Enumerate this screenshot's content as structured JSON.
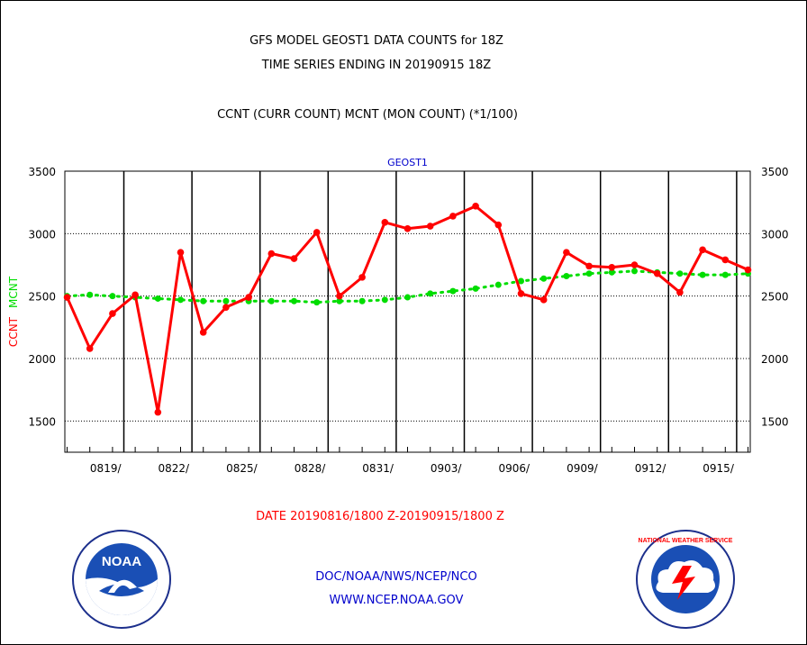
{
  "header": {
    "title_line1": "GFS MODEL GEOST1 DATA COUNTS for 18Z",
    "title_line2": "TIME SERIES ENDING IN 20190915 18Z",
    "subtitle": "CCNT (CURR COUNT) MCNT (MON COUNT) (*1/100)"
  },
  "footer": {
    "date_range": "DATE 20190816/1800 Z-20190915/1800 Z",
    "credit_line1": "DOC/NOAA/NWS/NCEP/NCO",
    "credit_line2": "WWW.NCEP.NOAA.GOV"
  },
  "logos": {
    "left_text": "NOAA",
    "right_text": "NATIONAL WEATHER SERVICE"
  },
  "chart_data": {
    "type": "line",
    "title": "GEOST1",
    "ylabel_ccnt": "CCNT",
    "ylabel_mcnt": "MCNT",
    "ylim": [
      1250,
      3500
    ],
    "yticks": [
      1500,
      2000,
      2500,
      3000,
      3500
    ],
    "xlim": [
      -0.1,
      30.1
    ],
    "xticks": [
      {
        "pos": 3,
        "label": "0819/"
      },
      {
        "pos": 6,
        "label": "0822/"
      },
      {
        "pos": 9,
        "label": "0825/"
      },
      {
        "pos": 12,
        "label": "0828/"
      },
      {
        "pos": 15,
        "label": "0831/"
      },
      {
        "pos": 18,
        "label": "0903/"
      },
      {
        "pos": 21,
        "label": "0906/"
      },
      {
        "pos": 24,
        "label": "0909/"
      },
      {
        "pos": 27,
        "label": "0912/"
      },
      {
        "pos": 30,
        "label": "0915/"
      }
    ],
    "grid": true,
    "colors": {
      "ccnt": "#ff0000",
      "mcnt": "#00dd00",
      "title": "#0000cc"
    },
    "series": [
      {
        "name": "CCNT",
        "values": [
          2490,
          2080,
          2360,
          2510,
          1570,
          2850,
          2210,
          2410,
          2490,
          2840,
          2800,
          3010,
          2500,
          2650,
          3090,
          3040,
          3060,
          3140,
          3220,
          3070,
          2520,
          2470,
          2850,
          2740,
          2730,
          2750,
          2680,
          2530,
          2870,
          2790,
          2710
        ]
      },
      {
        "name": "MCNT",
        "values": [
          2500,
          2510,
          2500,
          2490,
          2480,
          2470,
          2460,
          2460,
          2460,
          2460,
          2460,
          2450,
          2460,
          2460,
          2470,
          2490,
          2520,
          2540,
          2560,
          2590,
          2620,
          2640,
          2660,
          2680,
          2690,
          2700,
          2690,
          2680,
          2670,
          2670,
          2680
        ]
      }
    ]
  }
}
